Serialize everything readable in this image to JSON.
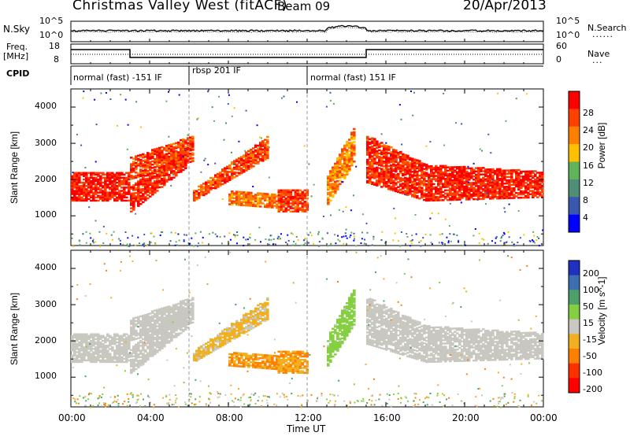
{
  "header": {
    "station": "Christmas Valley West (fitACF)",
    "beam": "Beam 09",
    "date": "20/Apr/2013"
  },
  "noise_panel": {
    "left_label": "N.Sky",
    "right_label": "N.Search",
    "ticks_left": [
      "10^5",
      "10^0"
    ],
    "ticks_right": [
      "10^5",
      "10^0"
    ]
  },
  "freq_panel": {
    "left_label_1": "Freq.",
    "left_label_2": "[MHz]",
    "ticks_left": [
      "18",
      "8"
    ],
    "right_label": "Nave",
    "ticks_right": [
      "60",
      "0"
    ]
  },
  "cpid": {
    "label": "CPID",
    "segments": [
      {
        "name": "normal (fast) -151 IF",
        "start_hour": 0,
        "end_hour": 6
      },
      {
        "name": "rbsp 201 IF",
        "start_hour": 6,
        "end_hour": 12
      },
      {
        "name": "normal (fast) 151 IF",
        "start_hour": 12,
        "end_hour": 24
      }
    ]
  },
  "power_panel": {
    "ylabel": "Slant Range [km]",
    "yticks": [
      "4000",
      "3000",
      "2000",
      "1000"
    ],
    "colorbar_label": "Power [dB]",
    "colorbar_ticks": [
      "28",
      "24",
      "20",
      "16",
      "12",
      "8",
      "4"
    ],
    "colors": [
      "#0000ff",
      "#3a58b0",
      "#4f8f78",
      "#5fb45a",
      "#ffc000",
      "#ff8000",
      "#ff4000",
      "#ff0000"
    ]
  },
  "velocity_panel": {
    "ylabel": "Slant Range [km]",
    "yticks": [
      "4000",
      "3000",
      "2000",
      "1000"
    ],
    "colorbar_label": "Velocity [m s^-1]",
    "colorbar_ticks": [
      "200",
      "100",
      "50",
      "15",
      "-15",
      "-50",
      "-100",
      "-200"
    ],
    "colors": [
      "#2030c0",
      "#3d6fb0",
      "#4ea06a",
      "#84d040",
      "#c8c8c0",
      "#f0b020",
      "#ff8000",
      "#ff3000",
      "#ff0000"
    ]
  },
  "xaxis": {
    "label": "Time UT",
    "ticks": [
      "00:00",
      "04:00",
      "08:00",
      "12:00",
      "16:00",
      "20:00",
      "00:00"
    ]
  },
  "chart_data": {
    "type": "heatmap",
    "x_range_hours": [
      0,
      24
    ],
    "y_range_km": [
      180,
      4500
    ],
    "power_db_range": [
      0,
      30
    ],
    "velocity_range": [
      -200,
      200
    ],
    "echo_bands": [
      {
        "t0": 0.0,
        "t1": 3.0,
        "lo0": 1400,
        "lo1": 1400,
        "hi0": 2200,
        "hi1": 2200,
        "power": 27,
        "vel": 0
      },
      {
        "t0": 3.0,
        "t1": 6.0,
        "lo0": 1100,
        "lo1": 2400,
        "hi0": 1800,
        "hi1": 3000,
        "power": 26,
        "vel": 0
      },
      {
        "t0": 3.0,
        "t1": 6.2,
        "lo0": 2000,
        "lo1": 2500,
        "hi0": 2600,
        "hi1": 3200,
        "power": 25,
        "vel": 0
      },
      {
        "t0": 6.2,
        "t1": 10.0,
        "lo0": 1400,
        "lo1": 2600,
        "hi0": 1700,
        "hi1": 3200,
        "power": 24,
        "vel": -30
      },
      {
        "t0": 8.0,
        "t1": 10.5,
        "lo0": 1300,
        "lo1": 1200,
        "hi0": 1700,
        "hi1": 1600,
        "power": 22,
        "vel": -70
      },
      {
        "t0": 10.5,
        "t1": 12.0,
        "lo0": 1100,
        "lo1": 1100,
        "hi0": 1700,
        "hi1": 1700,
        "power": 25,
        "vel": -60
      },
      {
        "t0": 13.0,
        "t1": 14.4,
        "lo0": 1300,
        "lo1": 2500,
        "hi0": 2100,
        "hi1": 3500,
        "power": 21,
        "vel": 40
      },
      {
        "t0": 15.0,
        "t1": 18.0,
        "lo0": 1900,
        "lo1": 1400,
        "hi0": 3200,
        "hi1": 2400,
        "power": 26,
        "vel": 0
      },
      {
        "t0": 18.0,
        "t1": 24.0,
        "lo0": 1400,
        "lo1": 1500,
        "hi0": 2400,
        "hi1": 2200,
        "power": 27,
        "vel": 0
      }
    ]
  }
}
